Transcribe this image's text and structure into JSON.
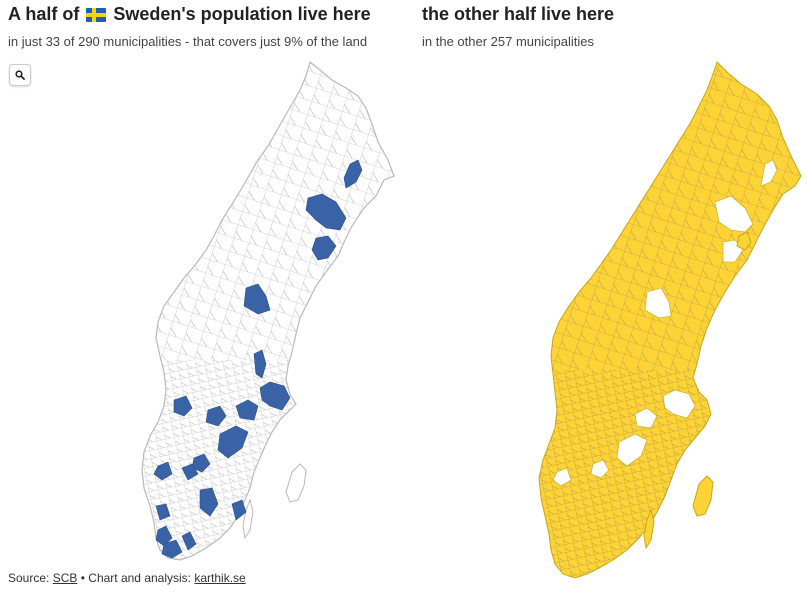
{
  "left_panel": {
    "title_before_flag": "A half of",
    "title_after_flag": "Sweden's population live here",
    "subtitle": "in just 33 of 290 municipalities - that covers just 9% of the land"
  },
  "right_panel": {
    "title": "the other half live here",
    "subtitle": "in the other 257 municipalities"
  },
  "zoom_button": {
    "icon": "magnifier-icon"
  },
  "footer": {
    "source_label": "Source:",
    "source_link": "SCB",
    "separator": "•",
    "credit_label": "Chart and analysis:",
    "credit_link": "karthik.se"
  },
  "colors": {
    "highlight_blue": "#3a62a6",
    "other_yellow": "#fdd335",
    "outline_grey": "#b9b9b9",
    "empty_fill": "#ffffff"
  }
}
